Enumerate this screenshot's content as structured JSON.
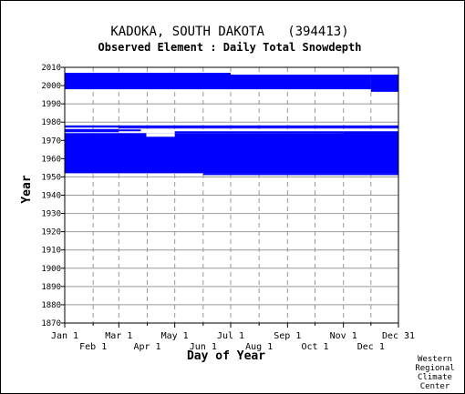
{
  "chart_data": {
    "type": "heatmap",
    "title": "KADOKA, SOUTH DAKOTA   (394413)",
    "subtitle": "Observed Element : Daily Total Snowdepth",
    "xlabel": "Day of Year",
    "ylabel": "Year",
    "x_range_days": [
      1,
      365
    ],
    "ylim": [
      1870,
      2010
    ],
    "y_ticks": [
      1870,
      1880,
      1890,
      1900,
      1910,
      1920,
      1930,
      1940,
      1950,
      1960,
      1970,
      1980,
      1990,
      2000,
      2010
    ],
    "x_ticks_top_row": [
      {
        "label": "Jan 1",
        "day": 1
      },
      {
        "label": "Mar 1",
        "day": 60
      },
      {
        "label": "May 1",
        "day": 121
      },
      {
        "label": "Jul 1",
        "day": 182
      },
      {
        "label": "Sep 1",
        "day": 244
      },
      {
        "label": "Nov 1",
        "day": 305
      },
      {
        "label": "Dec 31",
        "day": 365
      }
    ],
    "x_ticks_bottom_row": [
      {
        "label": "Feb 1",
        "day": 32
      },
      {
        "label": "Apr 1",
        "day": 91
      },
      {
        "label": "Jun 1",
        "day": 152
      },
      {
        "label": "Aug 1",
        "day": 213
      },
      {
        "label": "Oct 1",
        "day": 274
      },
      {
        "label": "Dec 1",
        "day": 335
      }
    ],
    "grid": true,
    "data_color": "#0000ff",
    "data_blocks": [
      {
        "day_start": 1,
        "day_end": 182,
        "year_start": 1998,
        "year_end": 2007
      },
      {
        "day_start": 182,
        "day_end": 335,
        "year_start": 1998,
        "year_end": 2006
      },
      {
        "day_start": 335,
        "day_end": 365,
        "year_start": 1996.6,
        "year_end": 2006
      },
      {
        "day_start": 1,
        "day_end": 365,
        "year_start": 1977,
        "year_end": 1978.2
      },
      {
        "day_start": 1,
        "day_end": 60,
        "year_start": 1974.5,
        "year_end": 1976.2
      },
      {
        "day_start": 60,
        "day_end": 84,
        "year_start": 1975,
        "year_end": 1976
      },
      {
        "day_start": 60,
        "day_end": 365,
        "year_start": 1976.5,
        "year_end": 1977
      },
      {
        "day_start": 1,
        "day_end": 365,
        "year_start": 1952,
        "year_end": 1974
      },
      {
        "day_start": 152,
        "day_end": 365,
        "year_start": 1951,
        "year_end": 1952
      },
      {
        "day_start": 121,
        "day_end": 305,
        "year_start": 1974,
        "year_end": 1975
      },
      {
        "day_start": 305,
        "day_end": 365,
        "year_start": 1972,
        "year_end": 1975
      }
    ],
    "data_gaps": [
      {
        "day_start": 90,
        "day_end": 121,
        "year_start": 1972,
        "year_end": 1974
      }
    ]
  },
  "footer": {
    "line1": "Western",
    "line2": "Regional",
    "line3": "Climate",
    "line4": "Center"
  }
}
